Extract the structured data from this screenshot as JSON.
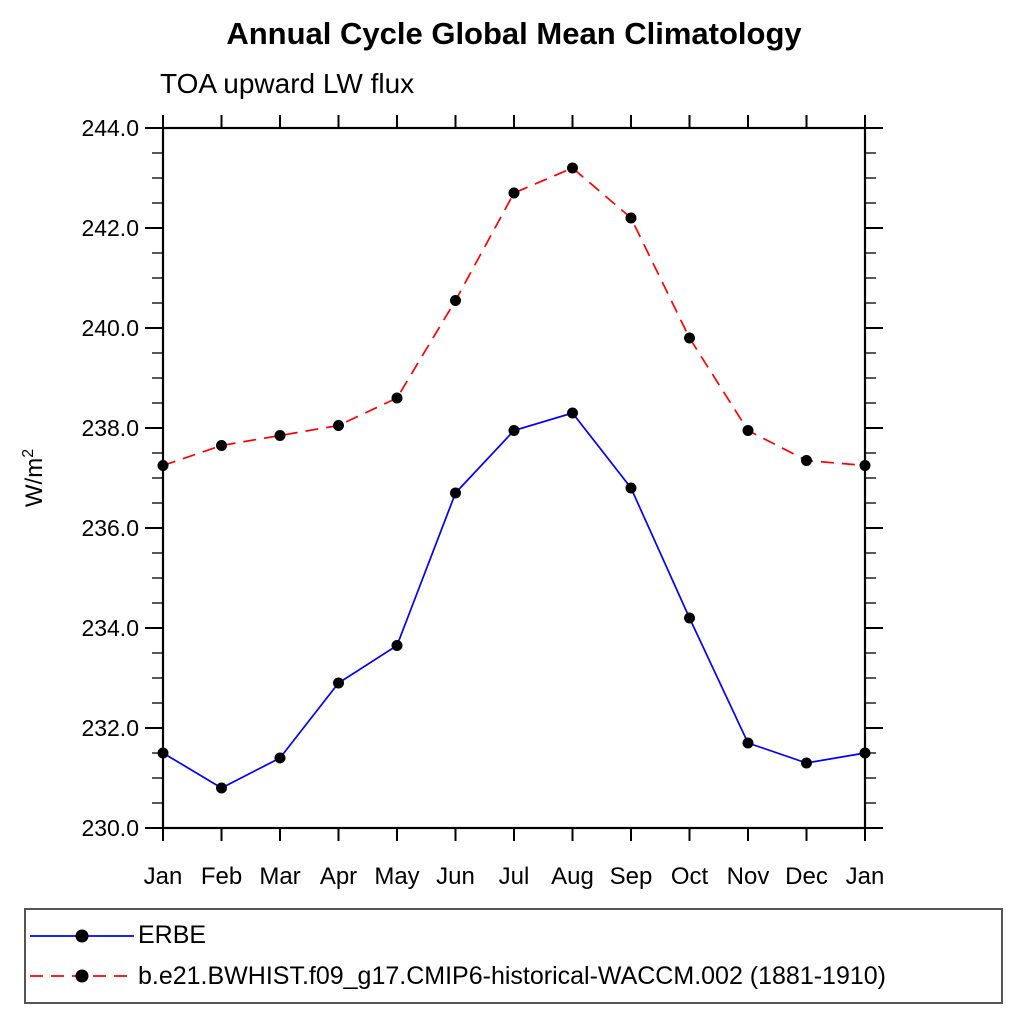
{
  "title": "Annual Cycle Global Mean Climatology",
  "subtitle": "TOA upward LW flux",
  "y_axis": {
    "label_base": "W/m",
    "label_exponent": "2"
  },
  "colors": {
    "erbe_line": "#0000ff",
    "model_line": "#ff0000",
    "marker": "#000000",
    "frame": "#000000",
    "legend_border": "#555555"
  },
  "chart_data": {
    "type": "line",
    "title": "Annual Cycle Global Mean Climatology",
    "subtitle": "TOA upward LW flux",
    "xlabel": "",
    "ylabel": "W/m²",
    "categories": [
      "Jan",
      "Feb",
      "Mar",
      "Apr",
      "May",
      "Jun",
      "Jul",
      "Aug",
      "Sep",
      "Oct",
      "Nov",
      "Dec",
      "Jan"
    ],
    "ylim": [
      230.0,
      244.0
    ],
    "ytick_major": 2.0,
    "ytick_minor": 0.5,
    "grid": false,
    "legend_position": "bottom box, left aligned",
    "series": [
      {
        "name": "ERBE",
        "style": "solid",
        "color": "#0000ff",
        "marker": "filled-circle",
        "marker_color": "#000000",
        "values": [
          231.5,
          230.8,
          231.4,
          232.9,
          233.65,
          236.7,
          237.95,
          238.3,
          236.8,
          234.2,
          231.7,
          231.3,
          231.5
        ]
      },
      {
        "name": "b.e21.BWHIST.f09_g17.CMIP6-historical-WACCM.002 (1881-1910)",
        "style": "dashed",
        "color": "#ff0000",
        "marker": "filled-circle",
        "marker_color": "#000000",
        "values": [
          237.25,
          237.65,
          237.85,
          238.05,
          238.6,
          240.55,
          242.7,
          243.2,
          242.2,
          239.8,
          237.95,
          237.35,
          237.25
        ]
      }
    ]
  }
}
